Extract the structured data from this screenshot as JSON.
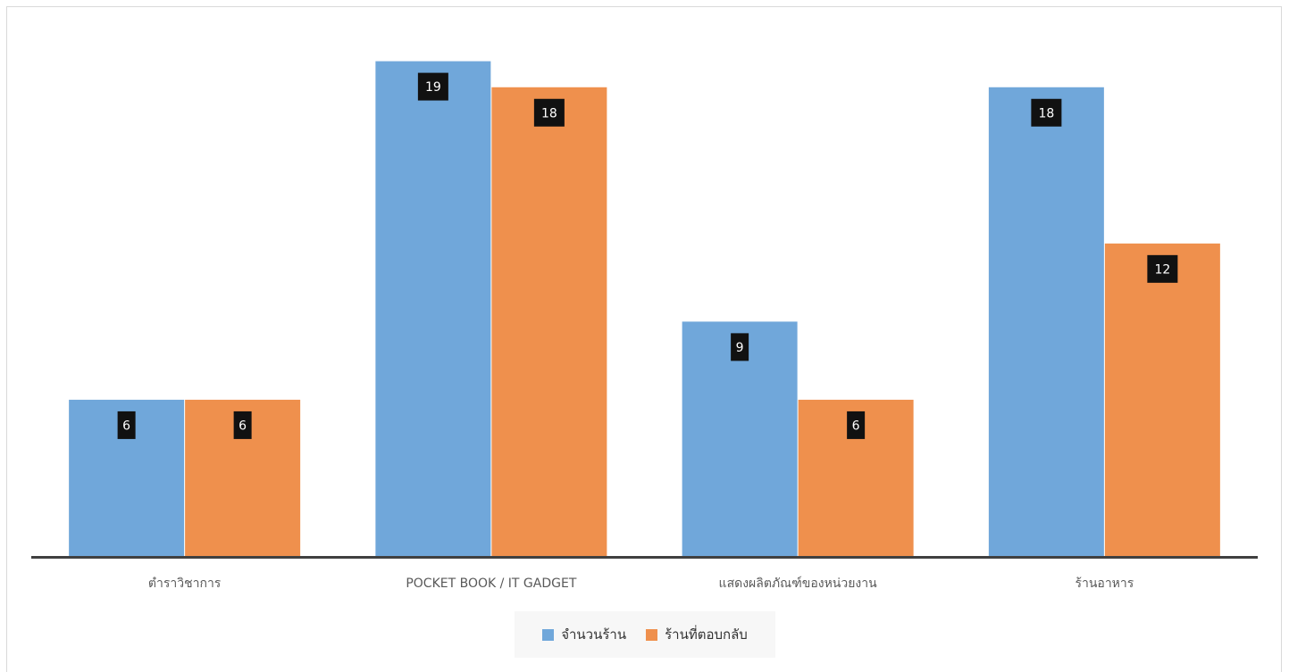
{
  "chart_data": {
    "type": "bar",
    "categories": [
      "ตำราวิชาการ",
      "POCKET BOOK / IT GADGET",
      "แสดงผลิตภัณฑ์ของหน่วยงาน",
      "ร้านอาหาร"
    ],
    "series": [
      {
        "name": "จำนวนร้าน",
        "values": [
          6,
          19,
          9,
          18
        ],
        "color": "#70a7da"
      },
      {
        "name": "ร้านที่ตอบกลับ",
        "values": [
          6,
          18,
          6,
          12
        ],
        "color": "#ef904d"
      }
    ],
    "ylim": [
      0,
      19.5
    ],
    "grid": false,
    "legend_position": "bottom",
    "data_label_bg": "#111111",
    "axis_color": "#404040"
  }
}
